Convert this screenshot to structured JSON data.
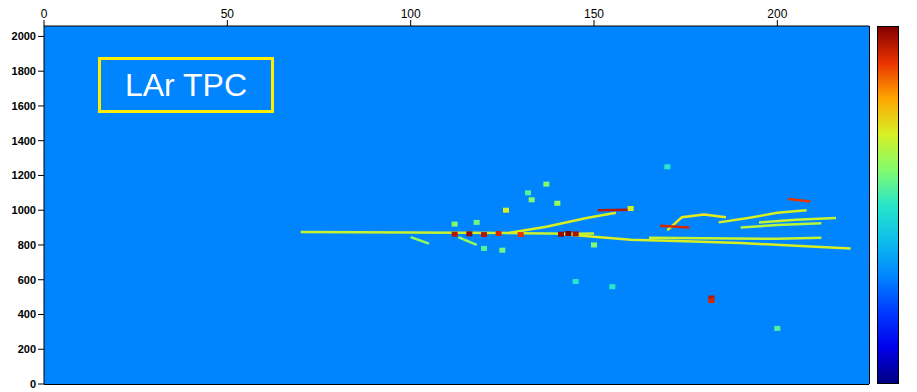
{
  "chart_data": {
    "type": "heatmap",
    "annotation": "LAr TPC",
    "xlim": [
      0,
      225
    ],
    "xticks": [
      0,
      50,
      100,
      150,
      200
    ],
    "ylim": [
      0,
      2060
    ],
    "yticks": [
      0,
      200,
      400,
      600,
      800,
      1000,
      1200,
      1400,
      1600,
      1800,
      2000
    ],
    "colorbar_range": [
      0,
      1
    ],
    "background_value": 0.3,
    "tracks": [
      {
        "x": [
          70,
          100,
          130,
          145,
          150
        ],
        "y": [
          875,
          872,
          868,
          865,
          866
        ],
        "value": 0.68
      },
      {
        "x": [
          127,
          137,
          148,
          156
        ],
        "y": [
          870,
          905,
          955,
          985
        ],
        "value": 0.7
      },
      {
        "x": [
          151,
          160
        ],
        "y": [
          1000,
          1002
        ],
        "value": 0.95
      },
      {
        "x": [
          140,
          160,
          175,
          190,
          205,
          220
        ],
        "y": [
          865,
          830,
          822,
          812,
          795,
          780
        ],
        "value": 0.7
      },
      {
        "x": [
          165,
          180,
          200,
          212
        ],
        "y": [
          842,
          838,
          836,
          842
        ],
        "value": 0.68
      },
      {
        "x": [
          170,
          174,
          180,
          186
        ],
        "y": [
          885,
          960,
          975,
          960
        ],
        "value": 0.72
      },
      {
        "x": [
          184,
          192,
          200,
          208
        ],
        "y": [
          930,
          955,
          985,
          1000
        ],
        "value": 0.7
      },
      {
        "x": [
          195,
          205,
          216
        ],
        "y": [
          930,
          945,
          955
        ],
        "value": 0.68
      },
      {
        "x": [
          190,
          200,
          212
        ],
        "y": [
          900,
          915,
          925
        ],
        "value": 0.66
      },
      {
        "x": [
          203,
          209
        ],
        "y": [
          1065,
          1050
        ],
        "value": 0.9
      },
      {
        "x": [
          100,
          105
        ],
        "y": [
          845,
          808
        ],
        "value": 0.62
      },
      {
        "x": [
          113,
          118
        ],
        "y": [
          845,
          800
        ],
        "value": 0.62
      },
      {
        "x": [
          168,
          176
        ],
        "y": [
          910,
          900
        ],
        "value": 0.92
      }
    ],
    "hits": {
      "x": [
        112,
        116,
        120,
        124,
        141,
        143,
        145,
        130,
        182,
        182,
        137,
        132,
        140,
        126,
        118,
        112,
        120,
        125,
        145,
        155,
        160,
        200,
        133,
        170,
        150
      ],
      "y": [
        862,
        864,
        860,
        866,
        862,
        866,
        864,
        860,
        495,
        480,
        1150,
        1100,
        1040,
        1000,
        930,
        920,
        780,
        770,
        590,
        560,
        1010,
        320,
        1060,
        1250,
        800
      ],
      "values": [
        0.95,
        0.98,
        0.95,
        0.92,
        0.98,
        1,
        0.96,
        0.9,
        0.95,
        0.92,
        0.6,
        0.55,
        0.62,
        0.7,
        0.58,
        0.6,
        0.55,
        0.58,
        0.5,
        0.5,
        0.7,
        0.55,
        0.6,
        0.5,
        0.6
      ]
    }
  }
}
